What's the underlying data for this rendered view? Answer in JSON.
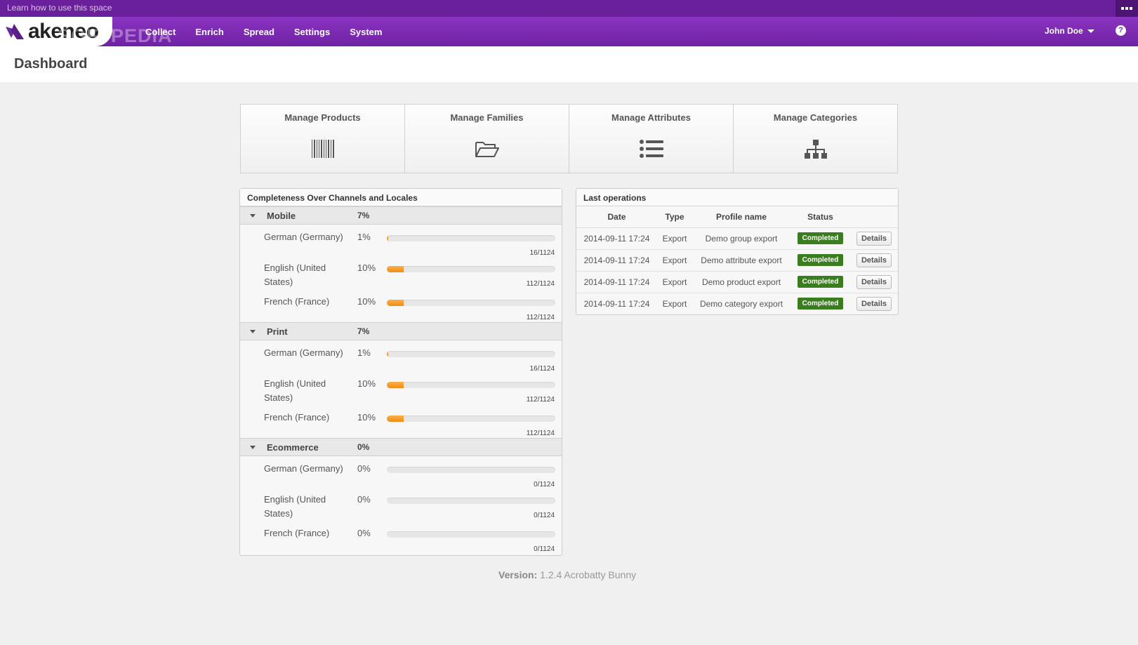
{
  "top_strip": {
    "learn_text": "Learn how to use this space"
  },
  "brand": {
    "name": "akeneo",
    "watermark": "SOFTPEDIA"
  },
  "nav": {
    "items": [
      "Collect",
      "Enrich",
      "Spread",
      "Settings",
      "System"
    ]
  },
  "user": {
    "name": "John Doe",
    "help_icon": "?"
  },
  "page": {
    "title": "Dashboard"
  },
  "shortcuts": [
    {
      "label": "Manage Products",
      "icon": "barcode-icon"
    },
    {
      "label": "Manage Families",
      "icon": "folder-open-icon"
    },
    {
      "label": "Manage Attributes",
      "icon": "list-icon"
    },
    {
      "label": "Manage Categories",
      "icon": "sitemap-icon"
    }
  ],
  "completeness": {
    "title": "Completeness Over Channels and Locales",
    "channels": [
      {
        "name": "Mobile",
        "percent": "7%",
        "locales": [
          {
            "name": "German (Germany)",
            "percent": "1%",
            "ratio": "16/1124",
            "fill": 1
          },
          {
            "name": "English (United States)",
            "percent": "10%",
            "ratio": "112/1124",
            "fill": 10
          },
          {
            "name": "French (France)",
            "percent": "10%",
            "ratio": "112/1124",
            "fill": 10
          }
        ]
      },
      {
        "name": "Print",
        "percent": "7%",
        "locales": [
          {
            "name": "German (Germany)",
            "percent": "1%",
            "ratio": "16/1124",
            "fill": 1
          },
          {
            "name": "English (United States)",
            "percent": "10%",
            "ratio": "112/1124",
            "fill": 10
          },
          {
            "name": "French (France)",
            "percent": "10%",
            "ratio": "112/1124",
            "fill": 10
          }
        ]
      },
      {
        "name": "Ecommerce",
        "percent": "0%",
        "locales": [
          {
            "name": "German (Germany)",
            "percent": "0%",
            "ratio": "0/1124",
            "fill": 0
          },
          {
            "name": "English (United States)",
            "percent": "0%",
            "ratio": "0/1124",
            "fill": 0
          },
          {
            "name": "French (France)",
            "percent": "0%",
            "ratio": "0/1124",
            "fill": 0
          }
        ]
      }
    ]
  },
  "operations": {
    "title": "Last operations",
    "columns": [
      "Date",
      "Type",
      "Profile name",
      "Status"
    ],
    "rows": [
      {
        "date": "2014-09-11 17:24",
        "type": "Export",
        "profile": "Demo group export",
        "status": "Completed",
        "action": "Details"
      },
      {
        "date": "2014-09-11 17:24",
        "type": "Export",
        "profile": "Demo attribute export",
        "status": "Completed",
        "action": "Details"
      },
      {
        "date": "2014-09-11 17:24",
        "type": "Export",
        "profile": "Demo product export",
        "status": "Completed",
        "action": "Details"
      },
      {
        "date": "2014-09-11 17:24",
        "type": "Export",
        "profile": "Demo category export",
        "status": "Completed",
        "action": "Details"
      }
    ]
  },
  "version": {
    "label": "Version:",
    "value": "1.2.4 Acrobatty Bunny"
  },
  "colors": {
    "brand_purple": "#7a2bb0",
    "top_strip": "#6a1f9b",
    "progress_orange": "#f29a20",
    "status_green": "#3a7d1e"
  }
}
